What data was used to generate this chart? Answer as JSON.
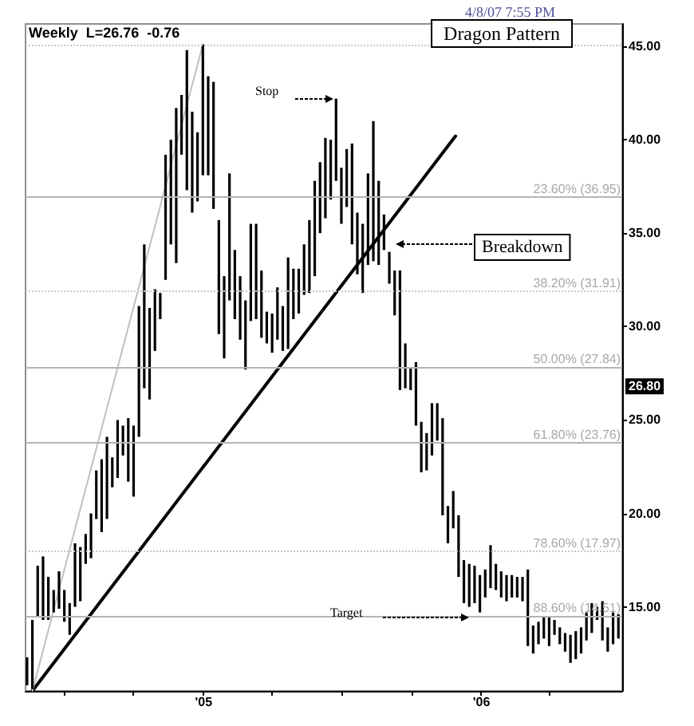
{
  "chart_data": {
    "type": "bar",
    "title": "Dragon Pattern",
    "subtitle": "Weekly  L=26.76  -0.76",
    "x": [
      "2004-05-14",
      "2004-05-21",
      "2004-05-28",
      "2004-06-04",
      "2004-06-11",
      "2004-06-18",
      "2004-06-25",
      "2004-07-02",
      "2004-07-09",
      "2004-07-16",
      "2004-07-23",
      "2004-07-30",
      "2004-08-06",
      "2004-08-13",
      "2004-08-20",
      "2004-08-27",
      "2004-09-03",
      "2004-09-10",
      "2004-09-17",
      "2004-09-24",
      "2004-10-01",
      "2004-10-08",
      "2004-10-15",
      "2004-10-22",
      "2004-10-29",
      "2004-11-05",
      "2004-11-12",
      "2004-11-19",
      "2004-11-26",
      "2004-12-03",
      "2004-12-10",
      "2004-12-17",
      "2004-12-24",
      "2004-12-31",
      "2005-01-07",
      "2005-01-14",
      "2005-01-21",
      "2005-01-28",
      "2005-02-04",
      "2005-02-11",
      "2005-02-18",
      "2005-02-25",
      "2005-03-04",
      "2005-03-11",
      "2005-03-18",
      "2005-03-25",
      "2005-04-01",
      "2005-04-08",
      "2005-04-15",
      "2005-04-22",
      "2005-04-29",
      "2005-05-06",
      "2005-05-13",
      "2005-05-20",
      "2005-05-27",
      "2005-06-03",
      "2005-06-10",
      "2005-06-17",
      "2005-06-24",
      "2005-07-01",
      "2005-07-08",
      "2005-07-15",
      "2005-07-22",
      "2005-07-29",
      "2005-08-05",
      "2005-08-12",
      "2005-08-19",
      "2005-08-26",
      "2005-09-02",
      "2005-09-09",
      "2005-09-16",
      "2005-09-23",
      "2005-09-30",
      "2005-10-07",
      "2005-10-14",
      "2005-10-21",
      "2005-10-28",
      "2005-11-04",
      "2005-11-11",
      "2005-11-18",
      "2005-11-25",
      "2005-12-02",
      "2005-12-09",
      "2005-12-16",
      "2005-12-23",
      "2005-12-30",
      "2006-01-06",
      "2006-01-13",
      "2006-01-20",
      "2006-01-27",
      "2006-02-03",
      "2006-02-10",
      "2006-02-17",
      "2006-02-24",
      "2006-03-03",
      "2006-03-10",
      "2006-03-17",
      "2006-03-24",
      "2006-03-31",
      "2006-04-07",
      "2006-04-14",
      "2006-04-21",
      "2006-04-28",
      "2006-05-05",
      "2006-05-12",
      "2006-05-19",
      "2006-05-26",
      "2006-06-02",
      "2006-06-09",
      "2006-06-16",
      "2006-06-23",
      "2006-06-30"
    ],
    "series": [
      {
        "color": "#000000",
        "base": [
          10.8,
          10.6,
          14.5,
          14.3,
          14.3,
          14.7,
          14.9,
          14.2,
          13.5,
          15.0,
          15.3,
          17.3,
          17.6,
          19.7,
          19.0,
          19.7,
          21.4,
          21.9,
          23.1,
          21.7,
          20.9,
          24.1,
          26.7,
          26.1,
          28.7,
          30.4,
          32.5,
          34.4,
          33.4,
          39.2,
          37.3,
          36.1,
          36.7,
          38.1,
          38.1,
          36.3,
          29.6,
          28.3,
          31.4,
          30.4,
          29.3,
          27.7,
          30.3,
          30.4,
          29.4,
          29.1,
          28.6,
          29.3,
          28.7,
          28.8,
          30.4,
          30.7,
          31.7,
          31.8,
          32.7,
          35.0,
          35.8,
          36.8,
          37.8,
          35.5,
          36.4,
          34.4,
          32.8,
          31.8,
          33.3,
          33.5,
          33.3,
          34.1,
          32.3,
          30.6,
          26.6,
          26.7,
          26.6,
          24.7,
          22.2,
          22.3,
          23.1,
          23.9,
          19.9,
          18.4,
          19.2,
          16.6,
          15.2,
          15.0,
          15.2,
          14.7,
          15.5,
          16.0,
          15.9,
          15.5,
          15.3,
          15.5,
          15.5,
          15.3,
          12.9,
          12.5,
          13.0,
          13.3,
          12.9,
          13.5,
          13.0,
          12.6,
          12.0,
          12.2,
          12.5,
          13.2,
          13.6,
          14.3,
          13.2,
          12.6,
          13.0,
          13.3
        ],
        "values": [
          1.5,
          3.7,
          2.7,
          3.4,
          2.3,
          1.2,
          2.0,
          1.7,
          1.7,
          3.4,
          2.9,
          1.6,
          2.4,
          2.6,
          3.9,
          4.4,
          1.6,
          3.1,
          1.6,
          3.4,
          3.8,
          7.0,
          7.7,
          4.9,
          3.3,
          1.4,
          6.7,
          5.6,
          8.3,
          3.2,
          7.5,
          5.4,
          3.7,
          7.0,
          5.3,
          6.8,
          6.1,
          4.4,
          6.8,
          3.7,
          3.4,
          3.7,
          5.2,
          5.1,
          3.6,
          1.7,
          2.1,
          2.8,
          2.4,
          4.9,
          2.7,
          2.4,
          2.7,
          3.9,
          5.1,
          3.8,
          4.3,
          3.2,
          4.4,
          3.0,
          3.1,
          5.4,
          3.3,
          3.7,
          4.9,
          7.5,
          4.5,
          1.9,
          1.7,
          2.4,
          6.4,
          2.4,
          1.2,
          3.4,
          2.7,
          2.0,
          2.8,
          2.0,
          5.2,
          2.0,
          2.0,
          3.3,
          2.3,
          2.3,
          2.0,
          2.0,
          1.5,
          2.3,
          1.4,
          1.4,
          1.4,
          1.2,
          1.1,
          1.3,
          4.1,
          1.5,
          1.2,
          1.2,
          1.6,
          0.8,
          0.9,
          1.0,
          1.5,
          1.5,
          1.4,
          1.5,
          1.6,
          0.7,
          2.1,
          1.3,
          1.7,
          1.3
        ]
      },
      {
        "type": "line",
        "color": "#000000",
        "x": [
          "2004-05-21",
          "2005-11-28"
        ],
        "values": [
          10.5,
          40.2
        ]
      },
      {
        "type": "line",
        "color": "#c0c0c0",
        "x": [
          "2004-05-21",
          "2004-12-31"
        ],
        "values": [
          10.5,
          45.1
        ]
      }
    ],
    "xlim": [
      "2004-05-12",
      "2006-07-05"
    ],
    "ylim": [
      10.5,
      46.2
    ],
    "xticks": [
      {
        "value": "2004-07-01",
        "label": null
      },
      {
        "value": "2004-10-01",
        "label": null
      },
      {
        "value": "2005-01-01",
        "label": "'05"
      },
      {
        "value": "2005-04-01",
        "label": null
      },
      {
        "value": "2005-07-01",
        "label": null
      },
      {
        "value": "2005-10-01",
        "label": null
      },
      {
        "value": "2006-01-01",
        "label": "'06"
      },
      {
        "value": "2006-04-01",
        "label": null
      }
    ],
    "yticks": [
      {
        "value": 15,
        "label": "15.00"
      },
      {
        "value": 20,
        "label": "20.00"
      },
      {
        "value": 25,
        "label": "25.00"
      },
      {
        "value": 30,
        "label": "30.00"
      },
      {
        "value": 35,
        "label": "35.00"
      },
      {
        "value": 40,
        "label": "40.00"
      },
      {
        "value": 45,
        "label": "45.00"
      }
    ],
    "ref_lines": [
      {
        "axis": "y",
        "value": 45.09,
        "label": null,
        "color": "#c8c8c8",
        "line_style": "dotted"
      },
      {
        "axis": "y",
        "value": 36.95,
        "label": "23.60% (36.95)",
        "color": "#b4b4b4",
        "line_style": "solid"
      },
      {
        "axis": "y",
        "value": 31.91,
        "label": "38.20% (31.91)",
        "color": "#c8c8c8",
        "line_style": "dotted"
      },
      {
        "axis": "y",
        "value": 27.84,
        "label": "50.00% (27.84)",
        "color": "#b4b4b4",
        "line_style": "solid"
      },
      {
        "axis": "y",
        "value": 23.76,
        "label": "61.80% (23.76)",
        "color": "#b4b4b4",
        "line_style": "solid"
      },
      {
        "axis": "y",
        "value": 17.97,
        "label": "78.60% (17.97)",
        "color": "#c8c8c8",
        "line_style": "dotted"
      },
      {
        "axis": "y",
        "value": 14.51,
        "label": "88.60% (14.51)",
        "color": "#b4b4b4",
        "line_style": "solid"
      }
    ],
    "annotations": [
      "4/8/07 7:55 PM",
      "Stop",
      "Breakdown",
      "Target",
      {
        "text": "26.80",
        "y": 26.8
      }
    ]
  }
}
